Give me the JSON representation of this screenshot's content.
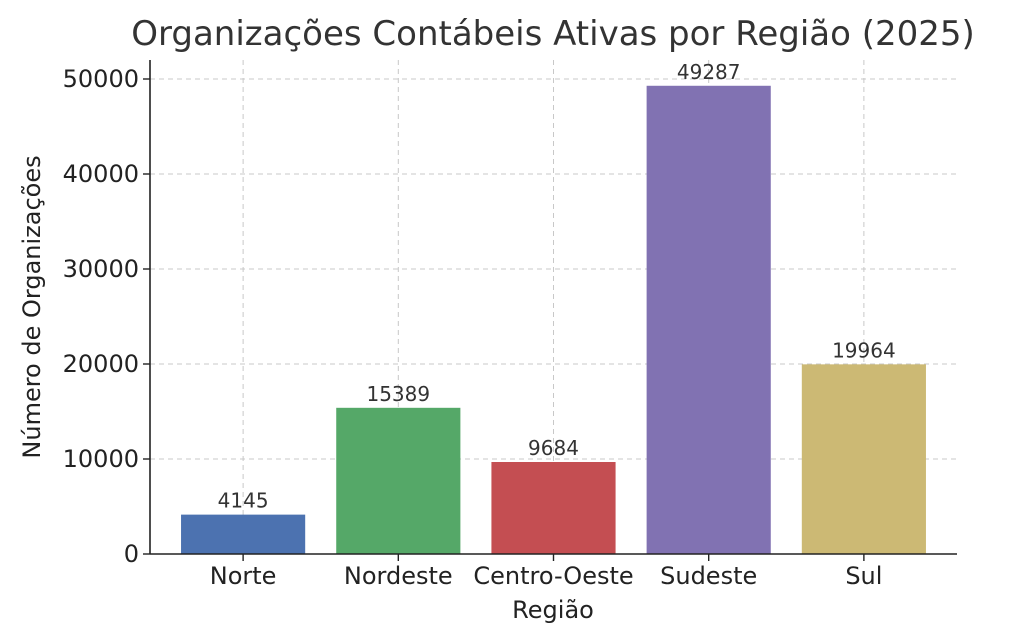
{
  "chart_data": {
    "type": "bar",
    "title": "Organizações Contábeis Ativas por Região (2025)",
    "xlabel": "Região",
    "ylabel": "Número de Organizações",
    "categories": [
      "Norte",
      "Nordeste",
      "Centro-Oeste",
      "Sudeste",
      "Sul"
    ],
    "values": [
      4145,
      15389,
      9684,
      49287,
      19964
    ],
    "data_labels": [
      "4145",
      "15389",
      "9684",
      "49287",
      "19964"
    ],
    "colors": [
      "#4c72b0",
      "#55a868",
      "#c44e52",
      "#8172b2",
      "#ccb974"
    ],
    "ylim": [
      0,
      52000
    ],
    "yticks": [
      0,
      10000,
      20000,
      30000,
      40000,
      50000
    ],
    "ytick_labels": [
      "0",
      "10000",
      "20000",
      "30000",
      "40000",
      "50000"
    ],
    "grid": true
  }
}
